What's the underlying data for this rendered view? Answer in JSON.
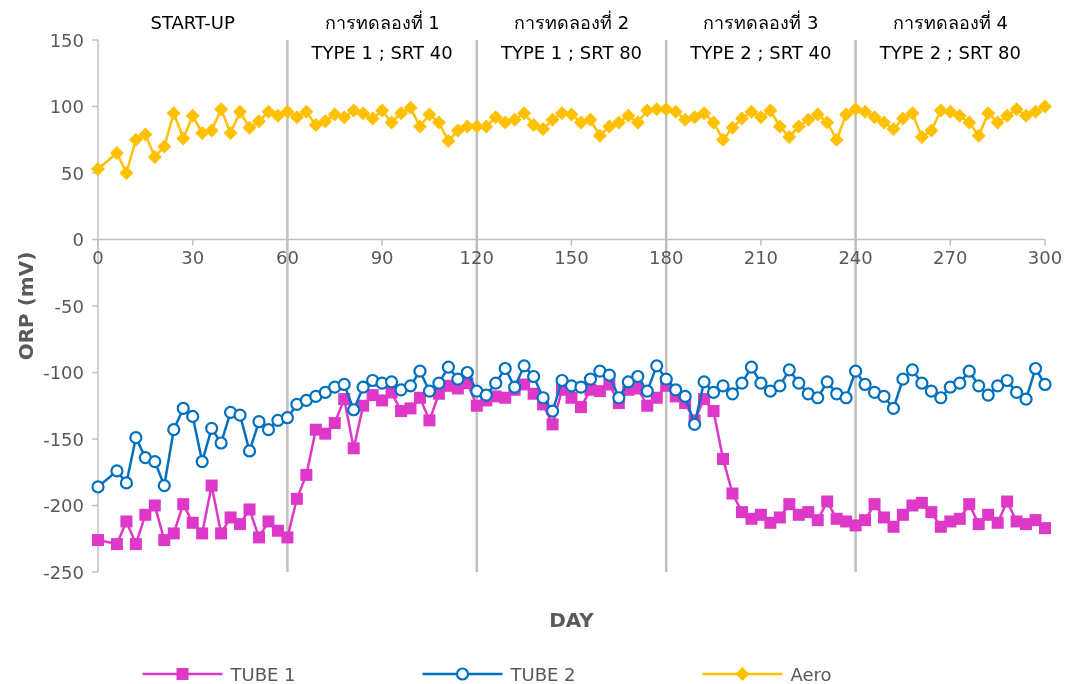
{
  "chart_data": {
    "type": "line",
    "xlabel": "DAY",
    "ylabel": "ORP (mV)",
    "xlim": [
      0,
      300
    ],
    "xticks": [
      0,
      30,
      60,
      90,
      120,
      150,
      180,
      210,
      240,
      270,
      300
    ],
    "ylim": [
      -250,
      150
    ],
    "yticks": [
      -250,
      -200,
      -150,
      -100,
      -50,
      0,
      50,
      100,
      150
    ],
    "grid": false,
    "legend": "bottom",
    "line_style": "solid",
    "x": [
      0,
      6,
      9,
      12,
      15,
      18,
      21,
      24,
      27,
      30,
      33,
      36,
      39,
      42,
      45,
      48,
      51,
      54,
      57,
      60,
      63,
      66,
      69,
      72,
      75,
      78,
      81,
      84,
      87,
      90,
      93,
      96,
      99,
      102,
      105,
      108,
      111,
      114,
      117,
      120,
      123,
      126,
      129,
      132,
      135,
      138,
      141,
      144,
      147,
      150,
      153,
      156,
      159,
      162,
      165,
      168,
      171,
      174,
      177,
      180,
      183,
      186,
      189,
      192,
      195,
      198,
      201,
      204,
      207,
      210,
      213,
      216,
      219,
      222,
      225,
      228,
      231,
      234,
      237,
      240,
      243,
      246,
      249,
      252,
      255,
      258,
      261,
      264,
      267,
      270,
      273,
      276,
      279,
      282,
      285,
      288,
      291,
      294,
      297,
      300
    ],
    "series": [
      {
        "name": "TUBE 1",
        "color": "#dd38c8",
        "marker": "square",
        "values": [
          -226,
          -229,
          -212,
          -229,
          -207,
          -200,
          -226,
          -221,
          -199,
          -213,
          -221,
          -185,
          -221,
          -209,
          -214,
          -203,
          -224,
          -212,
          -219,
          -224,
          -195,
          -177,
          -143,
          -146,
          -138,
          -120,
          -157,
          -125,
          -117,
          -121,
          -115,
          -129,
          -127,
          -119,
          -136,
          -116,
          -110,
          -112,
          -108,
          -125,
          -121,
          -118,
          -119,
          -113,
          -109,
          -116,
          -124,
          -139,
          -113,
          -119,
          -126,
          -113,
          -114,
          -109,
          -123,
          -113,
          -112,
          -125,
          -119,
          -110,
          -118,
          -123,
          -136,
          -120,
          -129,
          -165,
          -191,
          -205,
          -210,
          -207,
          -213,
          -209,
          -199,
          -207,
          -205,
          -211,
          -197,
          -210,
          -212,
          -215,
          -211,
          -199,
          -209,
          -216,
          -207,
          -200,
          -198,
          -205,
          -216,
          -212,
          -210,
          -199,
          -214,
          -207,
          -213,
          -197,
          -212,
          -214,
          -211,
          -217
        ]
      },
      {
        "name": "TUBE 2",
        "color": "#0070c0",
        "marker": "circle",
        "values": [
          -186,
          -174,
          -183,
          -149,
          -164,
          -167,
          -185,
          -143,
          -127,
          -133,
          -167,
          -142,
          -153,
          -130,
          -132,
          -159,
          -137,
          -143,
          -136,
          -134,
          -124,
          -121,
          -118,
          -115,
          -111,
          -109,
          -128,
          -111,
          -106,
          -108,
          -107,
          -113,
          -110,
          -99,
          -114,
          -108,
          -96,
          -105,
          -100,
          -114,
          -117,
          -108,
          -97,
          -111,
          -95,
          -103,
          -119,
          -129,
          -106,
          -110,
          -111,
          -105,
          -99,
          -102,
          -119,
          -107,
          -103,
          -114,
          -95,
          -105,
          -113,
          -118,
          -139,
          -107,
          -115,
          -110,
          -116,
          -108,
          -96,
          -108,
          -114,
          -110,
          -98,
          -108,
          -116,
          -119,
          -107,
          -116,
          -119,
          -99,
          -109,
          -115,
          -118,
          -127,
          -105,
          -98,
          -108,
          -114,
          -119,
          -111,
          -108,
          -99,
          -110,
          -117,
          -110,
          -106,
          -115,
          -120,
          -97,
          -109
        ]
      },
      {
        "name": "Aero",
        "color": "#ffc000",
        "marker": "diamond",
        "values": [
          53,
          65,
          50,
          75,
          79,
          62,
          70,
          95,
          76,
          93,
          80,
          82,
          98,
          80,
          96,
          84,
          89,
          96,
          93,
          96,
          92,
          96,
          86,
          89,
          94,
          92,
          97,
          95,
          91,
          97,
          88,
          95,
          99,
          85,
          94,
          88,
          74,
          82,
          85,
          85,
          85,
          92,
          88,
          90,
          95,
          86,
          83,
          90,
          95,
          94,
          88,
          90,
          78,
          85,
          88,
          93,
          88,
          97,
          98,
          98,
          96,
          90,
          92,
          95,
          88,
          75,
          84,
          91,
          96,
          92,
          97,
          85,
          77,
          85,
          90,
          94,
          88,
          75,
          94,
          98,
          96,
          92,
          88,
          83,
          91,
          95,
          77,
          82,
          97,
          96,
          93,
          88,
          78,
          95,
          88,
          93,
          98,
          93,
          96,
          100
        ]
      }
    ],
    "ref_lines": [
      {
        "axis": "x",
        "value": 60,
        "color": "#bfbfbf"
      },
      {
        "axis": "x",
        "value": 120,
        "color": "#bfbfbf"
      },
      {
        "axis": "x",
        "value": 180,
        "color": "#bfbfbf"
      },
      {
        "axis": "x",
        "value": 240,
        "color": "#bfbfbf"
      }
    ],
    "annotations": [
      "START-UP",
      "การทดลองที่ 1\nTYPE 1 ; SRT 40",
      "การทดลองที่ 2\nTYPE 1 ; SRT 80",
      "การทดลองที่ 3\nTYPE 2 ; SRT 40",
      "การทดลองที่ 4\nTYPE 2 ; SRT 80"
    ]
  }
}
